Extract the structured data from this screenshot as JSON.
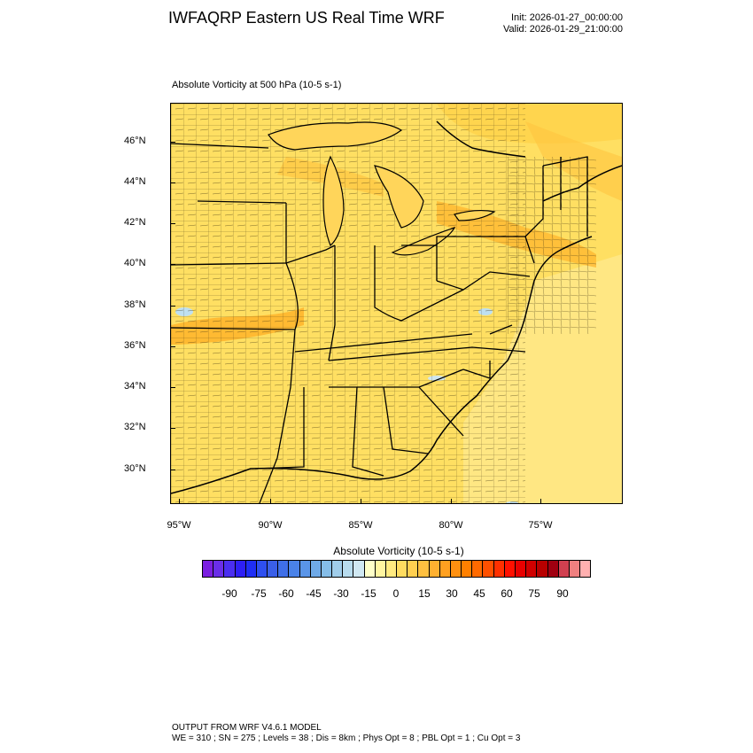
{
  "header": {
    "title": "IWFAQRP Eastern US Real Time WRF",
    "init": "Init: 2026-01-27_00:00:00",
    "valid": "Valid: 2026-01-29_21:00:00"
  },
  "plot": {
    "subtitle": "Absolute Vorticity at 500 hPa   (10-5 s-1)",
    "lat_labels": [
      "46°N",
      "44°N",
      "42°N",
      "40°N",
      "38°N",
      "36°N",
      "34°N",
      "32°N",
      "30°N"
    ],
    "lon_labels": [
      "95°W",
      "90°W",
      "85°W",
      "80°W",
      "75°W"
    ]
  },
  "colorbar": {
    "title": "Absolute Vorticity  (10-5 s-1)",
    "labels": [
      "-90",
      "-75",
      "-60",
      "-45",
      "-30",
      "-15",
      "0",
      "15",
      "30",
      "45",
      "60",
      "75",
      "90"
    ],
    "colors": [
      "#7b1fe0",
      "#6a2ee8",
      "#4b2ef0",
      "#2e1ff5",
      "#1f2ef5",
      "#2e4ff0",
      "#3a5fe8",
      "#3f6fe8",
      "#4a82e8",
      "#5a95e8",
      "#6faae8",
      "#85bde8",
      "#a0cdea",
      "#b8dcee",
      "#d0e8f2",
      "#ffffc8",
      "#fff5a0",
      "#ffea80",
      "#ffdc60",
      "#ffcf50",
      "#ffc040",
      "#ffb030",
      "#ffa020",
      "#ff9010",
      "#ff8000",
      "#ff6a00",
      "#ff5000",
      "#ff3000",
      "#ff1000",
      "#e80000",
      "#d00000",
      "#b80000",
      "#a00010",
      "#d04050",
      "#f08080",
      "#ffb0b0"
    ]
  },
  "footer": {
    "line1": "OUTPUT FROM WRF V4.6.1 MODEL",
    "line2": "WE = 310 ; SN = 275 ; Levels = 38 ; Dis = 8km ; Phys Opt = 8 ; PBL Opt = 1 ; Cu Opt = 3"
  }
}
